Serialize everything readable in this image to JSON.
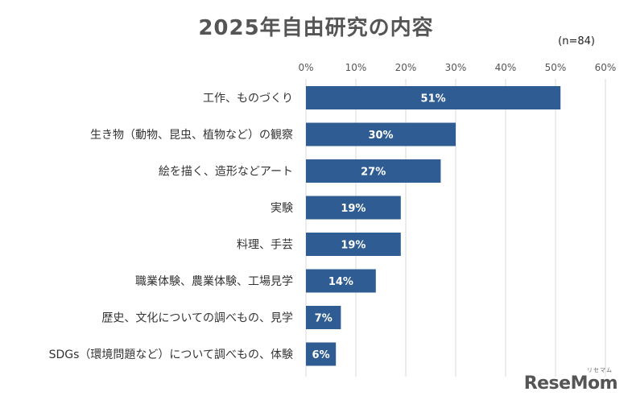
{
  "header": {
    "title": "2025年自由研究の内容",
    "sample_size": "(n=84)"
  },
  "brand": {
    "logo_text": "ReseMom",
    "logo_kana": "リセマム"
  },
  "colors": {
    "bar": "#2f5d93",
    "bar_label": "#ffffff",
    "grid": "#d9d9d9",
    "tick": "#555555",
    "category": "#333333"
  },
  "chart_data": {
    "type": "bar",
    "orientation": "horizontal",
    "title": "2025年自由研究の内容",
    "xlabel": "",
    "ylabel": "",
    "xlim": [
      0,
      60
    ],
    "ticks": [
      0,
      10,
      20,
      30,
      40,
      50,
      60
    ],
    "tick_labels": [
      "0%",
      "10%",
      "20%",
      "30%",
      "40%",
      "50%",
      "60%"
    ],
    "grid": true,
    "categories": [
      "工作、ものづくり",
      "生き物（動物、昆虫、植物など）の観察",
      "絵を描く、造形などアート",
      "実験",
      "料理、手芸",
      "職業体験、農業体験、工場見学",
      "歴史、文化についての調べもの、見学",
      "SDGs（環境問題など）について調べもの、体験"
    ],
    "values": [
      51,
      30,
      27,
      19,
      19,
      14,
      7,
      6
    ],
    "value_labels": [
      "51%",
      "30%",
      "27%",
      "19%",
      "19%",
      "14%",
      "7%",
      "6%"
    ]
  }
}
